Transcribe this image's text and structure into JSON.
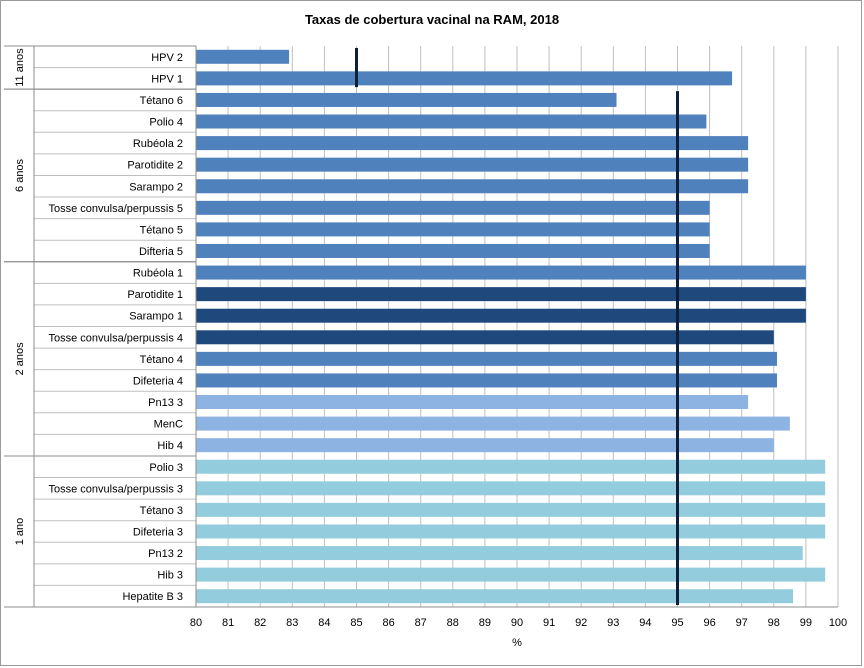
{
  "chart_data": {
    "type": "bar",
    "orientation": "horizontal",
    "title": "Taxas de cobertura vacinal na RAM, 2018",
    "xlabel": "%",
    "xlim": [
      80,
      100
    ],
    "xticks": [
      80,
      81,
      82,
      83,
      84,
      85,
      86,
      87,
      88,
      89,
      90,
      91,
      92,
      93,
      94,
      95,
      96,
      97,
      98,
      99,
      100
    ],
    "grid": true,
    "categories": [
      "HPV 2",
      "HPV 1",
      "Tétano 6",
      "Polio 4",
      "Rubéola 2",
      "Parotidite 2",
      "Sarampo 2",
      "Tosse convulsa/perpussis 5",
      "Tétano 5",
      "Difteria 5",
      "Rubéola 1",
      "Parotidite 1",
      "Sarampo 1",
      "Tosse convulsa/perpussis 4",
      "Tétano 4",
      "Difeteria 4",
      "Pn13 3",
      "MenC",
      "Hib 4",
      "Polio 3",
      "Tosse convulsa/perpussis 3",
      "Tétano 3",
      "Difeteria 3",
      "Pn13 2",
      "Hib 3",
      "Hepatite B 3"
    ],
    "values": [
      82.9,
      96.7,
      93.1,
      95.9,
      97.2,
      97.2,
      97.2,
      96.0,
      96.0,
      96.0,
      99.0,
      99.0,
      99.0,
      98.0,
      98.1,
      98.1,
      97.2,
      98.5,
      98.0,
      99.6,
      99.6,
      99.6,
      99.6,
      98.9,
      99.6,
      98.6
    ],
    "bar_colors": [
      "#4f81bd",
      "#4f81bd",
      "#4f81bd",
      "#4f81bd",
      "#4f81bd",
      "#4f81bd",
      "#4f81bd",
      "#4f81bd",
      "#4f81bd",
      "#4f81bd",
      "#4f81bd",
      "#1f497d",
      "#1f497d",
      "#1f497d",
      "#4f81bd",
      "#4f81bd",
      "#8db3e2",
      "#8db3e2",
      "#8db3e2",
      "#93cddd",
      "#93cddd",
      "#93cddd",
      "#93cddd",
      "#93cddd",
      "#93cddd",
      "#93cddd"
    ],
    "groups": [
      {
        "label": "11 anos",
        "start": 0,
        "end": 1
      },
      {
        "label": "6 anos",
        "start": 2,
        "end": 9
      },
      {
        "label": "2 anos",
        "start": 10,
        "end": 18
      },
      {
        "label": "1 ano",
        "start": 19,
        "end": 25
      }
    ],
    "reference_lines": [
      {
        "value": 85,
        "from": 0,
        "to": 1
      },
      {
        "value": 95,
        "from": 2,
        "to": 25
      }
    ]
  }
}
